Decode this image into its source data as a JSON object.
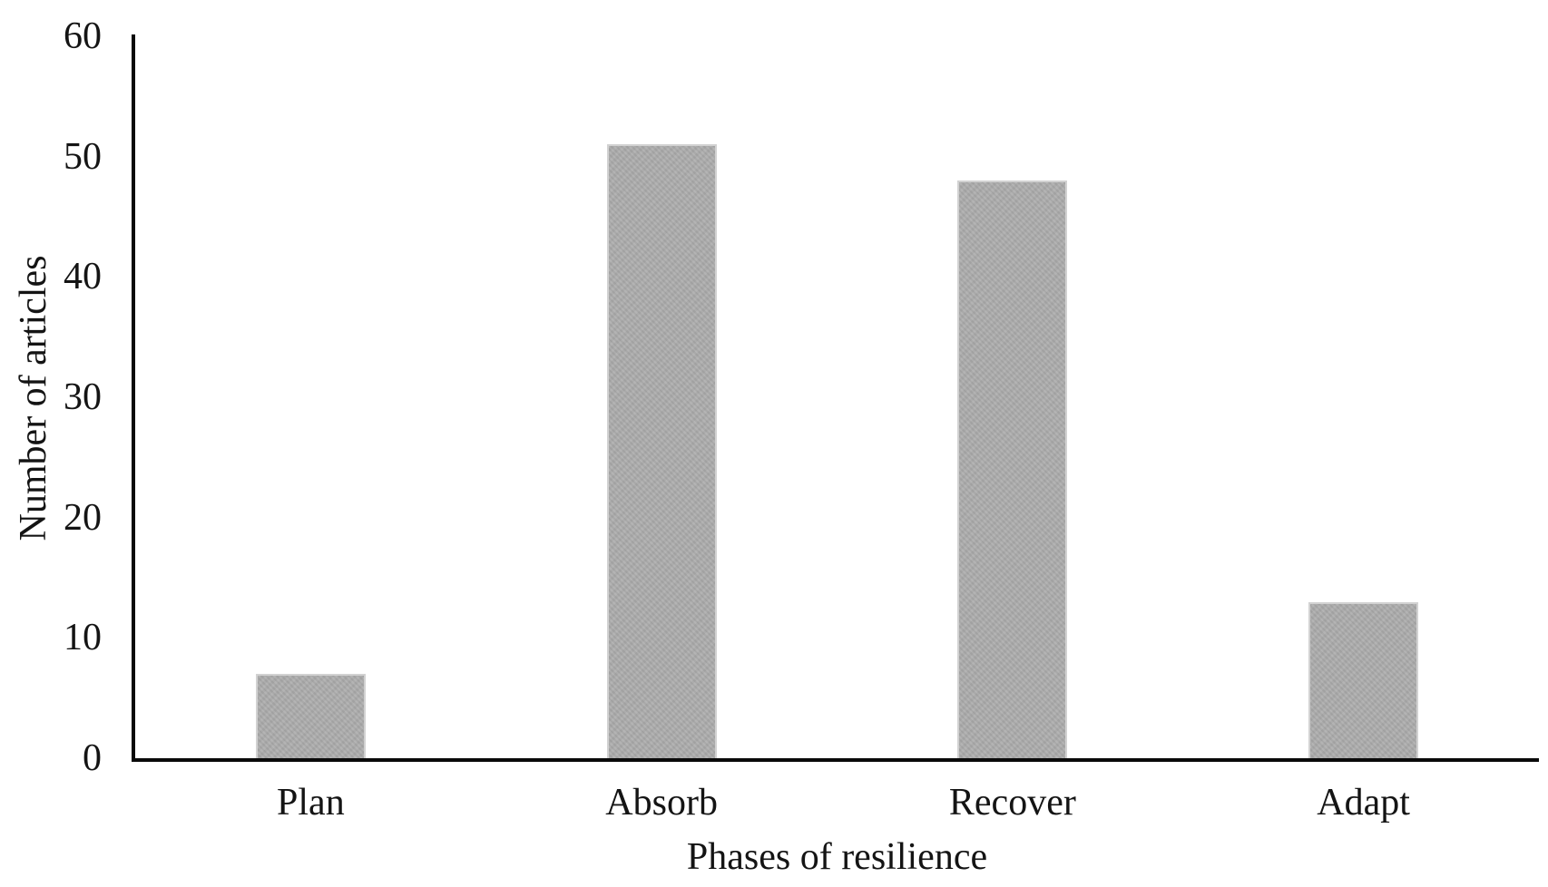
{
  "chart_data": {
    "type": "bar",
    "title": "",
    "categories": [
      "Plan",
      "Absorb",
      "Recover",
      "Adapt"
    ],
    "values": [
      7,
      51,
      48,
      13
    ],
    "xlabel": "Phases of resilience",
    "ylabel": "Number of articles",
    "ylim": [
      0,
      60
    ],
    "yticks": [
      0,
      10,
      20,
      30,
      40,
      50,
      60
    ],
    "ytick_interval": 10,
    "grid": false,
    "legend": "none",
    "axis_tick_marks": "none",
    "colors": {
      "bar_fill": "#a9a9a9",
      "bar_edge": "#d2d2d2",
      "axis_line": "#0a0a0a",
      "text": "#141414",
      "background": "#ffffff"
    }
  }
}
